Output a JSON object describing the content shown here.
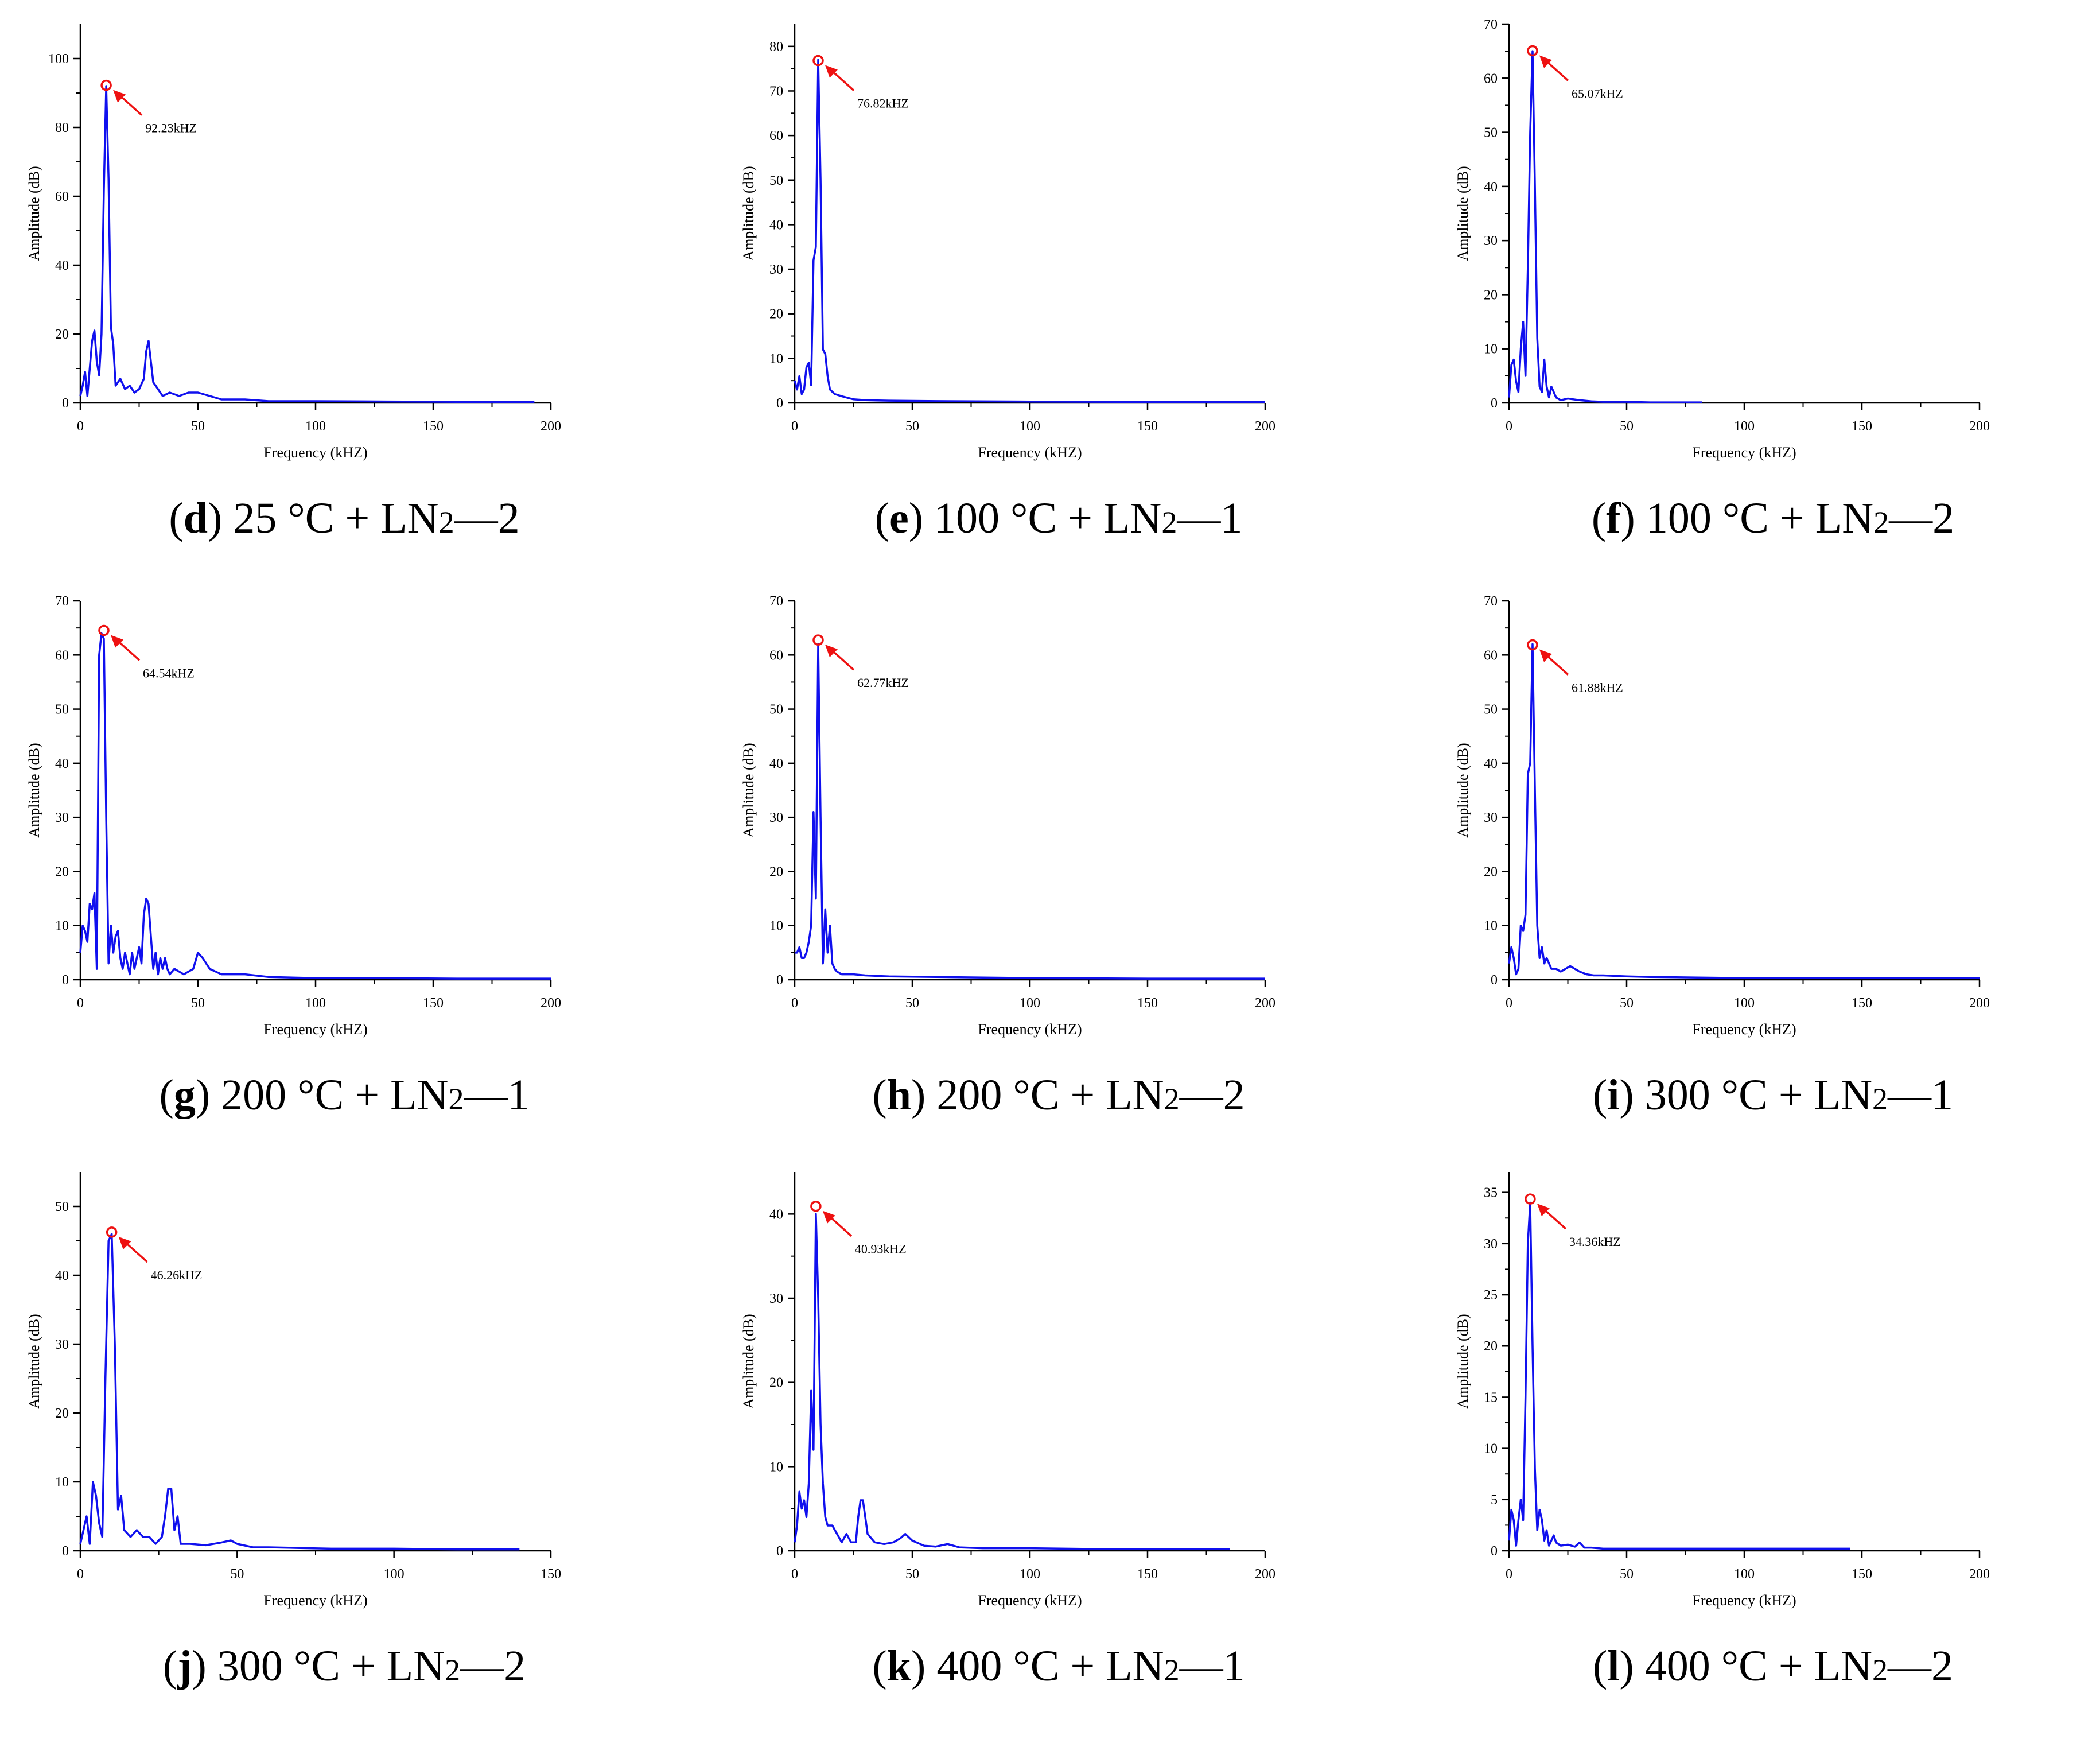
{
  "colors": {
    "signal": "#1010ee",
    "peak_marker": "#ee1111",
    "axis": "#000000"
  },
  "axis_text": {
    "xlabel": "Frequency (kHZ)",
    "ylabel": "Amplitude (dB)"
  },
  "chart_data": [
    {
      "id": "d",
      "type": "line",
      "caption": {
        "letter": "d",
        "temp": "25 °C + LN",
        "sub": "2",
        "run": "—2"
      },
      "xlabel": "Frequency (kHZ)",
      "ylabel": "Amplitude (dB)",
      "xlim": [
        0,
        200
      ],
      "ylim": [
        0,
        110
      ],
      "xticks": [
        0,
        50,
        100,
        150,
        200
      ],
      "yticks": [
        0,
        20,
        40,
        60,
        80,
        100
      ],
      "x_end": 193,
      "peak": {
        "x": 11,
        "y": 92.23,
        "label": "92.23kHZ"
      },
      "series": [
        {
          "x": [
            0,
            1,
            2,
            3,
            4,
            5,
            6,
            7,
            8,
            9,
            10,
            11,
            12,
            13,
            14,
            15,
            17,
            19,
            21,
            23,
            25,
            27,
            28,
            29,
            30,
            31,
            33,
            35,
            38,
            42,
            46,
            50,
            55,
            60,
            70,
            80,
            100,
            130,
            160,
            193
          ],
          "y": [
            2,
            5,
            9,
            2,
            10,
            18,
            21,
            12,
            8,
            20,
            62,
            92,
            65,
            22,
            17,
            5,
            7,
            4,
            5,
            3,
            4,
            7,
            15,
            18,
            12,
            6,
            4,
            2,
            3,
            2,
            3,
            3,
            2,
            1,
            1,
            0.5,
            0.5,
            0.4,
            0.3,
            0.2
          ]
        }
      ]
    },
    {
      "id": "e",
      "type": "line",
      "caption": {
        "letter": "e",
        "temp": "100 °C + LN",
        "sub": "2",
        "run": "—1"
      },
      "xlabel": "Frequency (kHZ)",
      "ylabel": "Amplitude (dB)",
      "xlim": [
        0,
        200
      ],
      "ylim": [
        0,
        85
      ],
      "xticks": [
        0,
        50,
        100,
        150,
        200
      ],
      "yticks": [
        0,
        10,
        20,
        30,
        40,
        50,
        60,
        70,
        80
      ],
      "x_end": 200,
      "peak": {
        "x": 10,
        "y": 76.82,
        "label": "76.82kHZ"
      },
      "series": [
        {
          "x": [
            0,
            1,
            2,
            3,
            4,
            5,
            6,
            7,
            8,
            9,
            10,
            11,
            12,
            13,
            14,
            15,
            17,
            20,
            25,
            30,
            40,
            60,
            100,
            150,
            200
          ],
          "y": [
            5,
            3,
            6,
            2,
            3,
            8,
            9,
            4,
            32,
            35,
            77,
            50,
            12,
            11,
            6,
            3,
            2,
            1.5,
            0.8,
            0.6,
            0.5,
            0.4,
            0.3,
            0.2,
            0.2
          ]
        }
      ]
    },
    {
      "id": "f",
      "type": "line",
      "caption": {
        "letter": "f",
        "temp": "100 °C + LN",
        "sub": "2",
        "run": "—2"
      },
      "xlabel": "Frequency (kHZ)",
      "ylabel": "Amplitude (dB)",
      "xlim": [
        0,
        200
      ],
      "ylim": [
        0,
        70
      ],
      "xticks": [
        0,
        50,
        100,
        150,
        200
      ],
      "yticks": [
        0,
        10,
        20,
        30,
        40,
        50,
        60,
        70
      ],
      "x_end": 82,
      "peak": {
        "x": 10,
        "y": 65.07,
        "label": "65.07kHZ"
      },
      "series": [
        {
          "x": [
            0,
            1,
            2,
            3,
            4,
            5,
            6,
            7,
            8,
            9,
            10,
            11,
            12,
            13,
            14,
            15,
            16,
            17,
            18,
            19,
            20,
            22,
            25,
            30,
            35,
            40,
            50,
            60,
            82
          ],
          "y": [
            1,
            7,
            8,
            4,
            2,
            10,
            15,
            5,
            25,
            50,
            65,
            40,
            12,
            3,
            2,
            8,
            3,
            1,
            3,
            2,
            1,
            0.5,
            0.8,
            0.5,
            0.3,
            0.2,
            0.2,
            0.1,
            0.1
          ]
        }
      ]
    },
    {
      "id": "g",
      "type": "line",
      "caption": {
        "letter": "g",
        "temp": "200 °C + LN",
        "sub": "2",
        "run": "—1"
      },
      "xlabel": "Frequency (kHZ)",
      "ylabel": "Amplitude (dB)",
      "xlim": [
        0,
        200
      ],
      "ylim": [
        0,
        70
      ],
      "xticks": [
        0,
        50,
        100,
        150,
        200
      ],
      "yticks": [
        0,
        10,
        20,
        30,
        40,
        50,
        60,
        70
      ],
      "x_end": 200,
      "peak": {
        "x": 10,
        "y": 64.54,
        "label": "64.54kHZ"
      },
      "series": [
        {
          "x": [
            0,
            1,
            2,
            3,
            4,
            5,
            6,
            7,
            8,
            9,
            10,
            11,
            12,
            13,
            14,
            15,
            16,
            17,
            18,
            19,
            20,
            21,
            22,
            23,
            24,
            25,
            26,
            27,
            28,
            29,
            30,
            31,
            32,
            33,
            34,
            35,
            36,
            37,
            38,
            40,
            44,
            48,
            50,
            52,
            55,
            60,
            70,
            80,
            100,
            130,
            160,
            200
          ],
          "y": [
            5,
            10,
            9,
            7,
            14,
            13,
            16,
            2,
            60,
            64,
            63,
            30,
            3,
            10,
            5,
            8,
            9,
            4,
            2,
            5,
            3,
            1,
            5,
            2,
            4,
            6,
            3,
            12,
            15,
            14,
            8,
            2,
            5,
            1,
            4,
            2,
            4,
            2,
            1,
            2,
            1,
            2,
            5,
            4,
            2,
            1,
            1,
            0.5,
            0.3,
            0.3,
            0.2,
            0.2
          ]
        }
      ]
    },
    {
      "id": "h",
      "type": "line",
      "caption": {
        "letter": "h",
        "temp": "200 °C + LN",
        "sub": "2",
        "run": "—2"
      },
      "xlabel": "Frequency (kHZ)",
      "ylabel": "Amplitude (dB)",
      "xlim": [
        0,
        200
      ],
      "ylim": [
        0,
        70
      ],
      "xticks": [
        0,
        50,
        100,
        150,
        200
      ],
      "yticks": [
        0,
        10,
        20,
        30,
        40,
        50,
        60,
        70
      ],
      "x_end": 200,
      "peak": {
        "x": 10,
        "y": 62.77,
        "label": "62.77kHZ"
      },
      "series": [
        {
          "x": [
            0,
            1,
            2,
            3,
            4,
            5,
            6,
            7,
            8,
            9,
            10,
            11,
            12,
            13,
            14,
            15,
            16,
            17,
            18,
            20,
            25,
            30,
            40,
            60,
            80,
            100,
            150,
            200
          ],
          "y": [
            5,
            5,
            6,
            4,
            4,
            5,
            7,
            10,
            31,
            15,
            62,
            30,
            3,
            13,
            5,
            10,
            3,
            2,
            1.5,
            1,
            1,
            0.8,
            0.6,
            0.5,
            0.4,
            0.3,
            0.2,
            0.2
          ]
        }
      ]
    },
    {
      "id": "i",
      "type": "line",
      "caption": {
        "letter": "i",
        "temp": "300 °C + LN",
        "sub": "2",
        "run": "—1"
      },
      "xlabel": "Frequency (kHZ)",
      "ylabel": "Amplitude (dB)",
      "xlim": [
        0,
        200
      ],
      "ylim": [
        0,
        70
      ],
      "xticks": [
        0,
        50,
        100,
        150,
        200
      ],
      "yticks": [
        0,
        10,
        20,
        30,
        40,
        50,
        60,
        70
      ],
      "x_end": 200,
      "peak": {
        "x": 10,
        "y": 61.88,
        "label": "61.88kHZ"
      },
      "series": [
        {
          "x": [
            0,
            1,
            2,
            3,
            4,
            5,
            6,
            7,
            8,
            9,
            10,
            11,
            12,
            13,
            14,
            15,
            16,
            18,
            20,
            22,
            24,
            26,
            28,
            30,
            33,
            36,
            40,
            50,
            60,
            80,
            100,
            150,
            200
          ],
          "y": [
            3,
            6,
            4,
            1,
            2,
            10,
            9,
            12,
            38,
            40,
            62,
            35,
            10,
            4,
            6,
            3,
            4,
            2,
            2,
            1.5,
            2,
            2.5,
            2,
            1.5,
            1,
            0.8,
            0.8,
            0.6,
            0.5,
            0.4,
            0.3,
            0.3,
            0.3
          ]
        }
      ]
    },
    {
      "id": "j",
      "type": "line",
      "caption": {
        "letter": "j",
        "temp": "300 °C + LN",
        "sub": "2",
        "run": "—2"
      },
      "xlabel": "Frequency (kHZ)",
      "ylabel": "Amplitude (dB)",
      "xlim": [
        0,
        150
      ],
      "ylim": [
        0,
        55
      ],
      "xticks": [
        0,
        50,
        100,
        150
      ],
      "yticks": [
        0,
        10,
        20,
        30,
        40,
        50
      ],
      "x_end": 140,
      "peak": {
        "x": 10,
        "y": 46.26,
        "label": "46.26kHZ"
      },
      "series": [
        {
          "x": [
            0,
            1,
            2,
            3,
            4,
            5,
            6,
            7,
            8,
            9,
            10,
            11,
            12,
            13,
            14,
            16,
            18,
            20,
            22,
            24,
            26,
            27,
            28,
            29,
            30,
            31,
            32,
            35,
            40,
            45,
            48,
            50,
            55,
            60,
            70,
            80,
            100,
            120,
            140
          ],
          "y": [
            1,
            3,
            5,
            1,
            10,
            8,
            4,
            2,
            25,
            45,
            46,
            30,
            6,
            8,
            3,
            2,
            3,
            2,
            2,
            1,
            2,
            5,
            9,
            9,
            3,
            5,
            1,
            1,
            0.8,
            1.2,
            1.5,
            1,
            0.5,
            0.5,
            0.4,
            0.3,
            0.3,
            0.2,
            0.2
          ]
        }
      ]
    },
    {
      "id": "k",
      "type": "line",
      "caption": {
        "letter": "k",
        "temp": "400 °C + LN",
        "sub": "2",
        "run": "—1"
      },
      "xlabel": "Frequency (kHZ)",
      "ylabel": "Amplitude (dB)",
      "xlim": [
        0,
        200
      ],
      "ylim": [
        0,
        45
      ],
      "xticks": [
        0,
        50,
        100,
        150,
        200
      ],
      "yticks": [
        0,
        10,
        20,
        30,
        40
      ],
      "x_end": 185,
      "peak": {
        "x": 9,
        "y": 40.93,
        "label": "40.93kHZ"
      },
      "series": [
        {
          "x": [
            0,
            1,
            2,
            3,
            4,
            5,
            6,
            7,
            8,
            9,
            10,
            11,
            12,
            13,
            14,
            16,
            18,
            20,
            22,
            24,
            26,
            27,
            28,
            29,
            30,
            31,
            34,
            38,
            42,
            45,
            47,
            50,
            55,
            60,
            65,
            70,
            80,
            100,
            130,
            160,
            185
          ],
          "y": [
            1,
            3,
            7,
            5,
            6,
            4,
            8,
            19,
            12,
            40,
            30,
            15,
            8,
            4,
            3,
            3,
            2,
            1,
            2,
            1,
            1,
            4,
            6,
            6,
            4,
            2,
            1,
            0.8,
            1,
            1.5,
            2,
            1.2,
            0.6,
            0.5,
            0.8,
            0.4,
            0.3,
            0.3,
            0.2,
            0.2,
            0.2
          ]
        }
      ]
    },
    {
      "id": "l",
      "type": "line",
      "caption": {
        "letter": "l",
        "temp": "400 °C + LN",
        "sub": "2",
        "run": "—2"
      },
      "xlabel": "Frequency (kHZ)",
      "ylabel": "Amplitude (dB)",
      "xlim": [
        0,
        200
      ],
      "ylim": [
        0,
        37
      ],
      "xticks": [
        0,
        50,
        100,
        150,
        200
      ],
      "yticks": [
        0,
        5,
        10,
        15,
        20,
        25,
        30,
        35
      ],
      "x_end": 145,
      "peak": {
        "x": 9,
        "y": 34.36,
        "label": "34.36kHZ"
      },
      "series": [
        {
          "x": [
            0,
            1,
            2,
            3,
            4,
            5,
            6,
            7,
            8,
            9,
            10,
            11,
            12,
            13,
            14,
            15,
            16,
            17,
            18,
            19,
            20,
            22,
            25,
            28,
            30,
            32,
            35,
            40,
            50,
            60,
            80,
            100,
            120,
            145
          ],
          "y": [
            1,
            4,
            3,
            0.5,
            3,
            5,
            3,
            15,
            30,
            34,
            20,
            8,
            2,
            4,
            3,
            1,
            2,
            0.5,
            1,
            1.5,
            0.8,
            0.5,
            0.6,
            0.4,
            0.8,
            0.3,
            0.3,
            0.2,
            0.2,
            0.2,
            0.2,
            0.2,
            0.2,
            0.2
          ]
        }
      ]
    }
  ]
}
